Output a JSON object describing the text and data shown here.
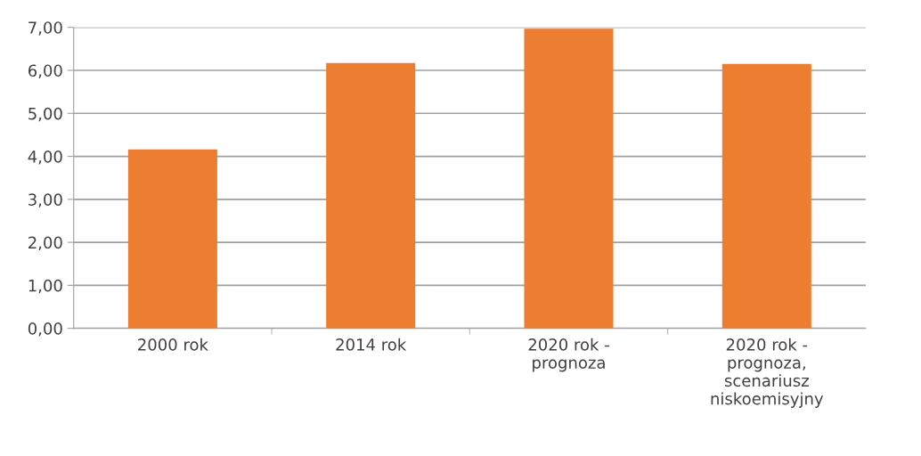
{
  "chart_data": {
    "type": "bar",
    "categories": [
      "2000 rok",
      "2014 rok",
      "2020 rok -\nprognoza",
      "2020 rok -\nprognoza,\nscenariusz\nniskoemisyjny"
    ],
    "values": [
      4.16,
      6.17,
      6.97,
      6.15
    ],
    "color": "#ed7d31",
    "ylim": [
      0,
      7
    ],
    "yticks": [
      {
        "value": 0,
        "label": "0,00"
      },
      {
        "value": 1,
        "label": "1,00"
      },
      {
        "value": 2,
        "label": "2,00"
      },
      {
        "value": 3,
        "label": "3,00"
      },
      {
        "value": 4,
        "label": "4,00"
      },
      {
        "value": 5,
        "label": "5,00"
      },
      {
        "value": 6,
        "label": "6,00"
      },
      {
        "value": 7,
        "label": "7,00"
      }
    ],
    "grid": "y"
  }
}
